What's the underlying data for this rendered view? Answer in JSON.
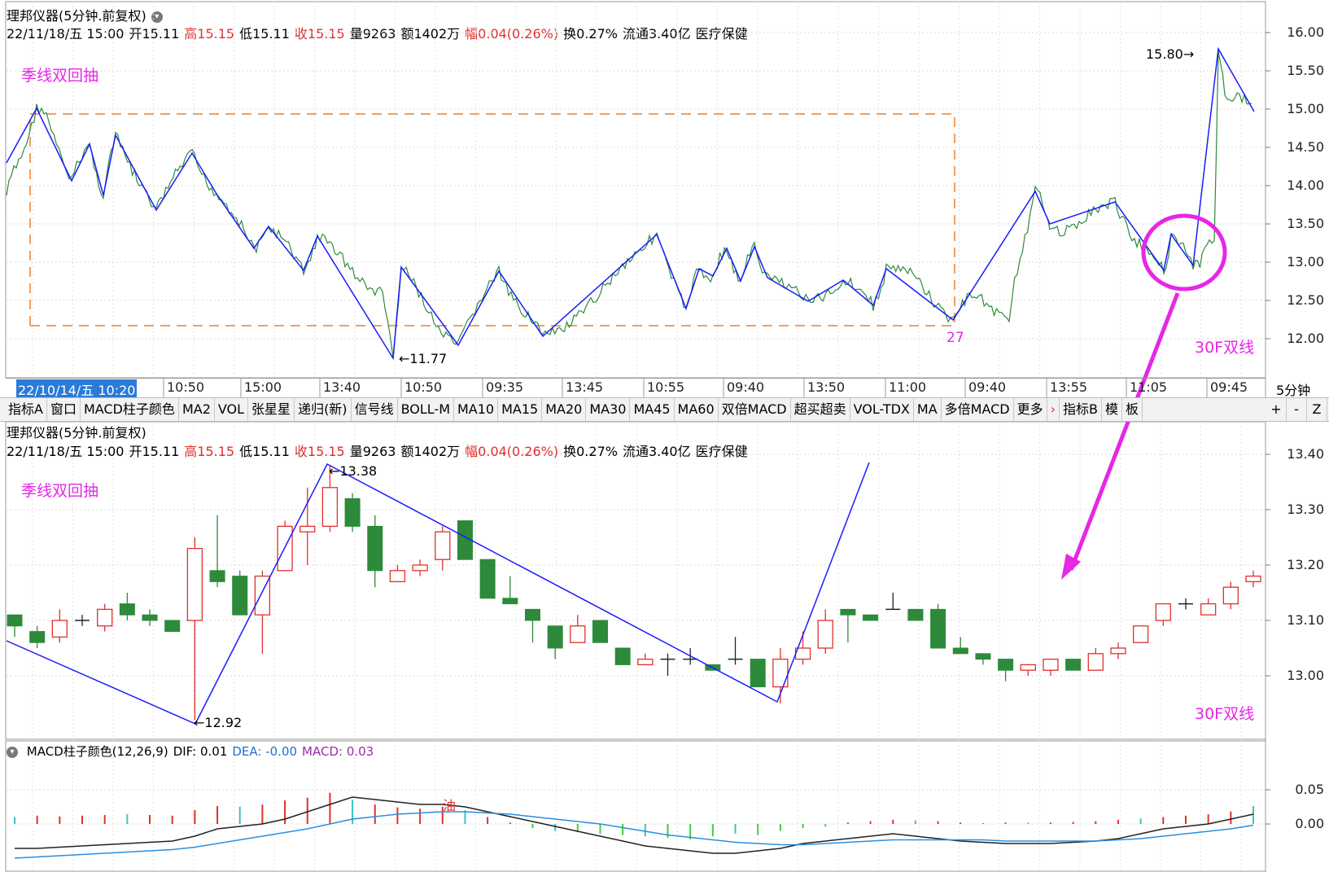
{
  "top_panel": {
    "title": "理邦仪器(5分钟.前复权)",
    "info": {
      "date": "22/11/18/五 15:00",
      "open": "开15.11",
      "high": "高15.15",
      "low": "低15.11",
      "close": "收15.15",
      "volume": "量9263",
      "amount": "额1402万",
      "change": "幅0.04(0.26%)",
      "turnover": "换0.27%",
      "float": "流通3.40亿",
      "sector": "医疗保健"
    },
    "annotation_title": "季线双回抽",
    "annotation_bottom": "30F双线",
    "label_low": "11.77",
    "label_high": "15.80",
    "label_27": "27",
    "y_ticks": [
      "16.00",
      "15.50",
      "15.00",
      "14.50",
      "14.00",
      "13.50",
      "13.00",
      "12.50",
      "12.00"
    ]
  },
  "time_axis": {
    "cursor": "22/10/14/五 10:20",
    "labels": [
      "10:50",
      "15:00",
      "13:40",
      "10:50",
      "09:35",
      "13:45",
      "10:55",
      "09:40",
      "13:50",
      "11:00",
      "09:40",
      "13:55",
      "11:05",
      "09:45"
    ],
    "period": "5分钟"
  },
  "toolbar": {
    "items": [
      "指标A",
      "窗口",
      "MACD柱子颜色",
      "MA2",
      "VOL",
      "张星星",
      "递归(新)",
      "信号线",
      "BOLL-M",
      "MA10",
      "MA15",
      "MA20",
      "MA30",
      "MA45",
      "MA60",
      "双倍MACD",
      "超买超卖",
      "VOL-TDX",
      "MA",
      "多倍MACD",
      "更多"
    ],
    "right_items": [
      "指标B",
      "模",
      "板"
    ],
    "controls": [
      "+",
      "-",
      "Z"
    ]
  },
  "mid_panel": {
    "title": "理邦仪器(5分钟.前复权)",
    "annotation_title": "季线双回抽",
    "annotation_bottom": "30F双线",
    "label_high": "13.38",
    "label_low": "12.92",
    "y_ticks": [
      "13.40",
      "13.30",
      "13.20",
      "13.10",
      "13.00"
    ]
  },
  "macd_panel": {
    "title": "MACD柱子颜色(12,26,9)",
    "dif": "DIF: 0.01",
    "dea": "DEA: -0.00",
    "macd": "MACD: 0.03",
    "signal_mark": "油",
    "y_ticks": [
      "0.05",
      "0.00"
    ]
  },
  "colors": {
    "up": "#e0302c",
    "down": "#2d8a3a",
    "trend": "#1a1aff",
    "annotation": "#e627e6",
    "box": "#f0a060"
  }
}
